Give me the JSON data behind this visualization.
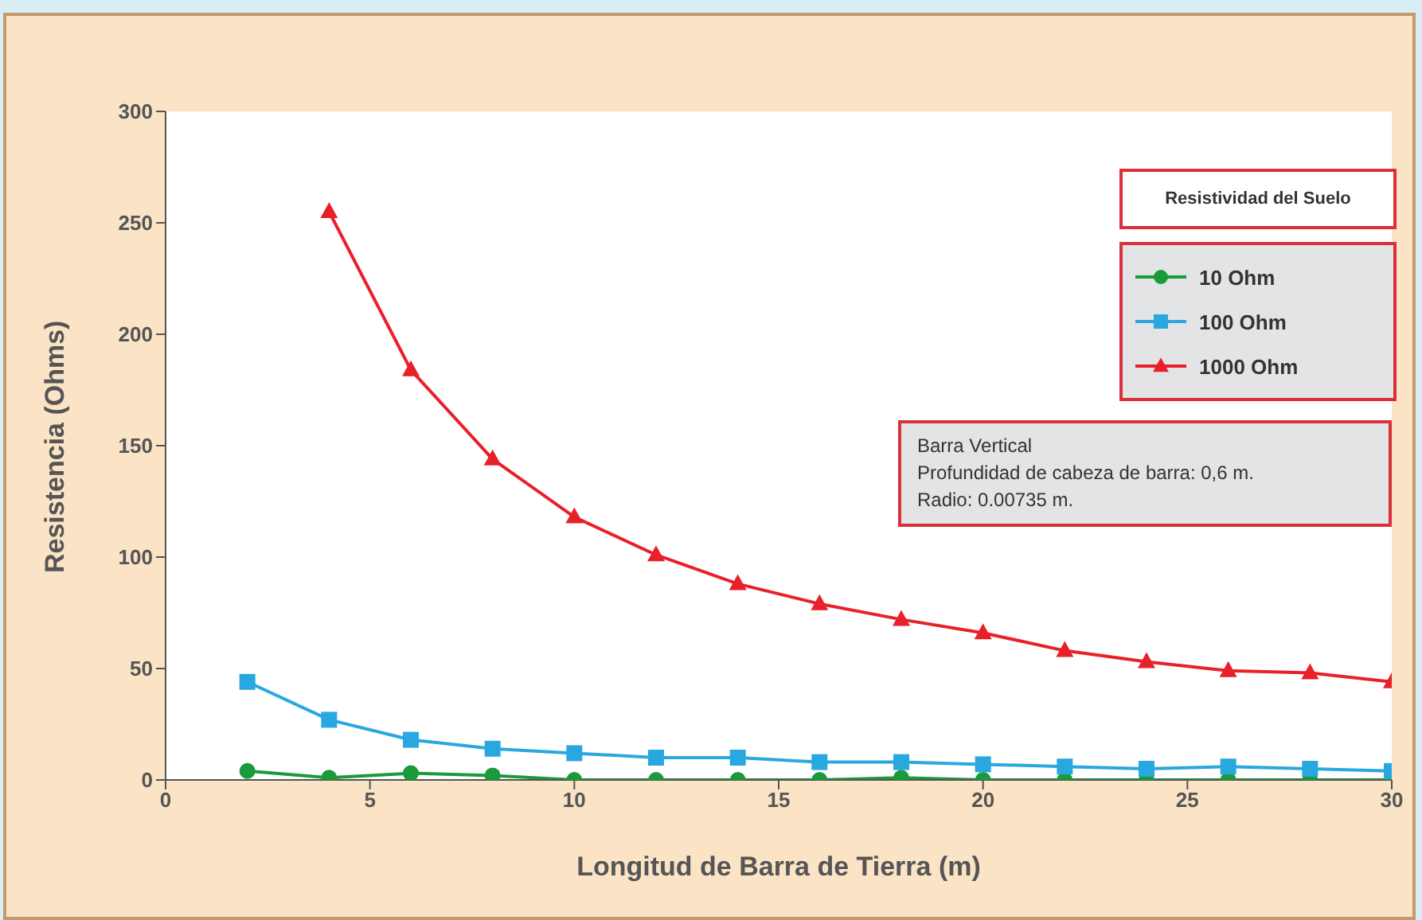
{
  "chart_data": {
    "type": "line",
    "xlabel": "Longitud de Barra de Tierra (m)",
    "ylabel": "Resistencia (Ohms)",
    "legend_title": "Resistividad del Suelo",
    "xlim": [
      0,
      30
    ],
    "xticks": [
      0,
      5,
      10,
      15,
      20,
      25,
      30
    ],
    "ylim": [
      0,
      300
    ],
    "yticks": [
      0,
      50,
      100,
      150,
      200,
      250,
      300
    ],
    "grid": false,
    "legend": "top right",
    "annotations": [
      "Barra Vertical\nProfundidad de cabeza de barra: 0,6 m.\nRadio: 0.00735 m."
    ],
    "series": [
      {
        "name": "10 Ohm",
        "color": "#1a9a3a",
        "marker": "circle",
        "x": [
          2,
          4,
          6,
          8,
          10,
          12,
          14,
          16,
          18,
          20,
          22,
          24,
          26,
          28,
          30
        ],
        "values": [
          4,
          1,
          3,
          2,
          0,
          0,
          0,
          0,
          1,
          0,
          0,
          0,
          0,
          0,
          0
        ]
      },
      {
        "name": "100 Ohm",
        "color": "#29a8e0",
        "marker": "square",
        "x": [
          2,
          4,
          6,
          8,
          10,
          12,
          14,
          16,
          18,
          20,
          22,
          24,
          26,
          28,
          30
        ],
        "values": [
          44,
          27,
          18,
          14,
          12,
          10,
          10,
          8,
          8,
          7,
          6,
          5,
          6,
          5,
          4
        ]
      },
      {
        "name": "1000 Ohm",
        "color": "#e8202a",
        "marker": "triangle",
        "x": [
          4,
          6,
          8,
          10,
          12,
          14,
          16,
          18,
          20,
          22,
          24,
          26,
          28,
          30
        ],
        "values": [
          255,
          184,
          144,
          118,
          101,
          88,
          79,
          72,
          66,
          58,
          53,
          49,
          48,
          44
        ]
      }
    ]
  }
}
